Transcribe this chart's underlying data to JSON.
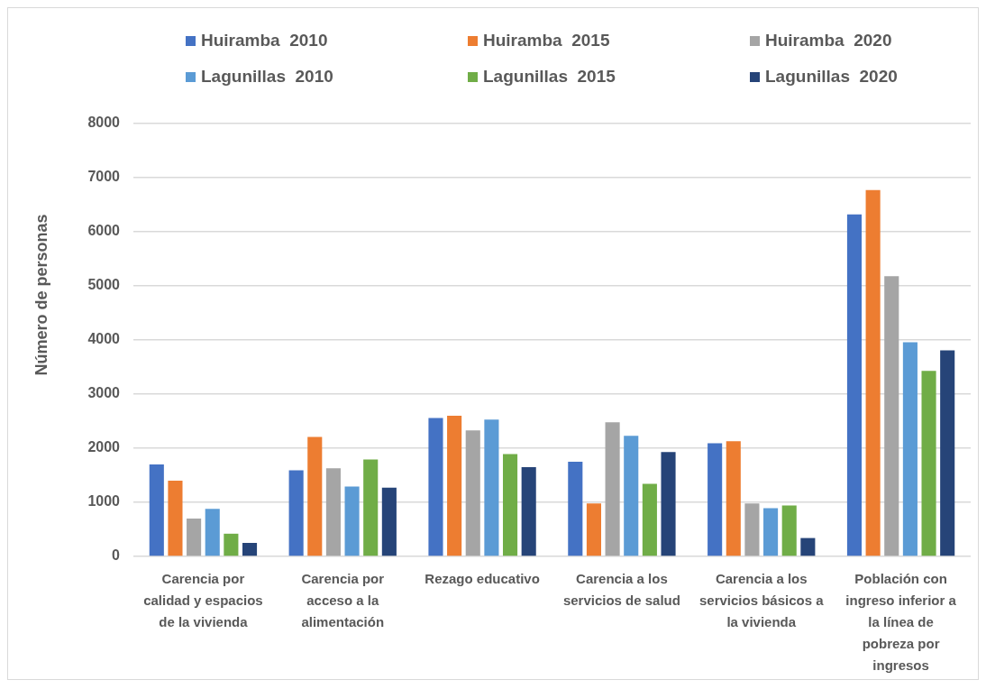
{
  "chart_data": {
    "type": "bar",
    "ylabel": "Número de personas",
    "categories": [
      "Carencia por\ncalidad y espacios\nde la vivienda",
      "Carencia por\nacceso a la\nalimentación",
      "Rezago educativo",
      "Carencia a los\nservicios de salud",
      "Carencia a los\nservicios básicos a\nla vivienda",
      "Población con\ningreso inferior a\nla línea de\npobreza por\ningresos"
    ],
    "series": [
      {
        "name": "Huiramba  2010",
        "color": "#4472c4",
        "values": [
          1700,
          1590,
          2560,
          1750,
          2090,
          6320
        ]
      },
      {
        "name": "Huiramba  2015",
        "color": "#ed7d31",
        "values": [
          1400,
          2210,
          2600,
          980,
          2130,
          6770
        ]
      },
      {
        "name": "Huiramba  2020",
        "color": "#a5a5a5",
        "values": [
          700,
          1630,
          2330,
          2480,
          980,
          5180
        ]
      },
      {
        "name": "Lagunillas  2010",
        "color": "#5b9bd5",
        "values": [
          880,
          1290,
          2530,
          2230,
          890,
          3960
        ]
      },
      {
        "name": "Lagunillas  2015",
        "color": "#70ad47",
        "values": [
          420,
          1790,
          1890,
          1340,
          940,
          3430
        ]
      },
      {
        "name": "Lagunillas  2020",
        "color": "#264478",
        "values": [
          250,
          1270,
          1650,
          1930,
          340,
          3810
        ]
      }
    ],
    "ylim": [
      0,
      8000
    ],
    "yticks": [
      0,
      1000,
      2000,
      3000,
      4000,
      5000,
      6000,
      7000,
      8000
    ],
    "grid": "y",
    "legend": "top"
  }
}
